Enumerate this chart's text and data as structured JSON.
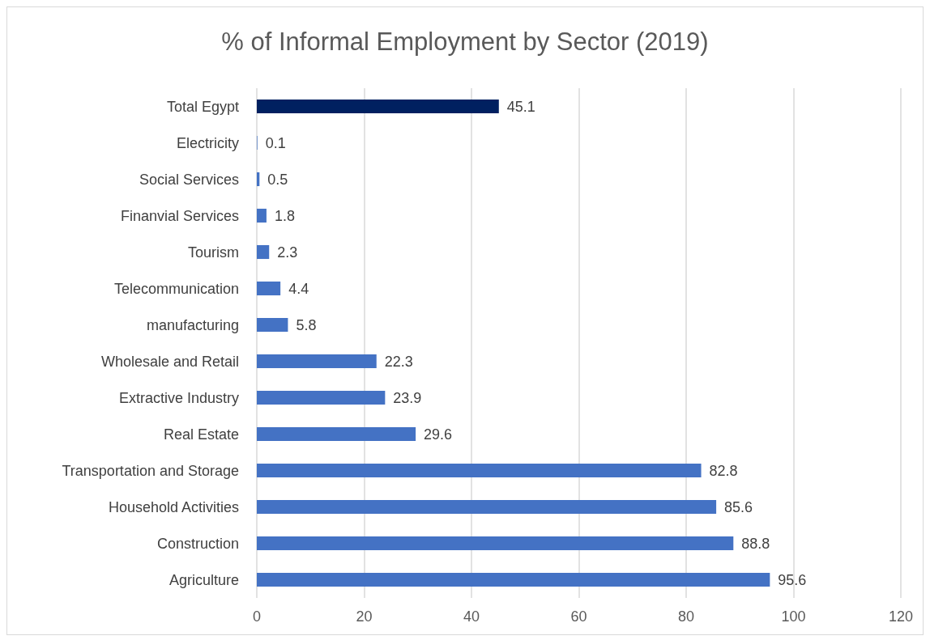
{
  "chart_data": {
    "type": "bar",
    "orientation": "horizontal",
    "title": "% of Informal Employment by Sector (2019)",
    "categories": [
      "Total Egypt",
      "Electricity",
      "Social Services",
      "Finanvial Services",
      "Tourism",
      "Telecommunication",
      "manufacturing",
      "Wholesale and Retail",
      "Extractive Industry",
      "Real Estate",
      "Transportation and Storage",
      "Household Activities",
      "Construction",
      "Agriculture"
    ],
    "values": [
      45.1,
      0.1,
      0.5,
      1.8,
      2.3,
      4.4,
      5.8,
      22.3,
      23.9,
      29.6,
      82.8,
      85.6,
      88.8,
      95.6
    ],
    "colors": [
      "#002060",
      "#4472c4",
      "#4472c4",
      "#4472c4",
      "#4472c4",
      "#4472c4",
      "#4472c4",
      "#4472c4",
      "#4472c4",
      "#4472c4",
      "#4472c4",
      "#4472c4",
      "#4472c4",
      "#4472c4"
    ],
    "xlim": [
      0,
      120
    ],
    "xticks": [
      0,
      20,
      40,
      60,
      80,
      100,
      120
    ],
    "grid": "x",
    "data_labels": true
  }
}
